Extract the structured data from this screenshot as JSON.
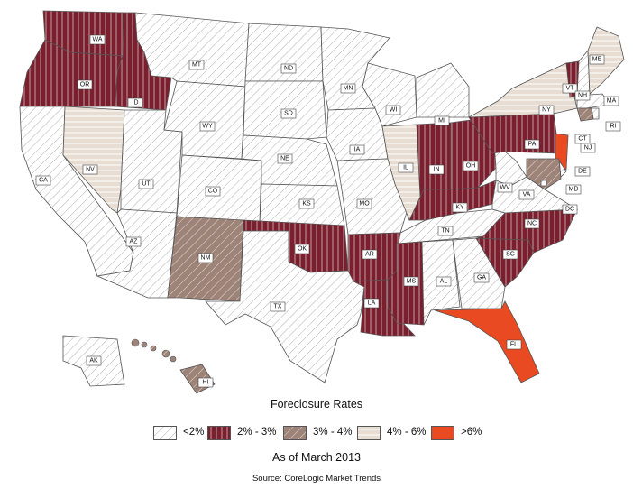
{
  "legend": {
    "title": "Foreclosure Rates",
    "items": [
      {
        "label": "<2%",
        "category": "lt2",
        "color": "#ffffff"
      },
      {
        "label": "2% - 3%",
        "category": "2to3",
        "color": "#7a1f2e"
      },
      {
        "label": "3% - 4%",
        "category": "3to4",
        "color": "#9e8478"
      },
      {
        "label": "4% - 6%",
        "category": "4to6",
        "color": "#e8ddd2"
      },
      {
        "label": ">6%",
        "category": "gt6",
        "color": "#ea4a22"
      }
    ]
  },
  "as_of": "As of March 2013",
  "source": "Source: CoreLogic Market Trends",
  "states": [
    {
      "abbr": "WA",
      "category": "2to3"
    },
    {
      "abbr": "OR",
      "category": "2to3"
    },
    {
      "abbr": "ID",
      "category": "2to3"
    },
    {
      "abbr": "CA",
      "category": "lt2"
    },
    {
      "abbr": "NV",
      "category": "4to6"
    },
    {
      "abbr": "UT",
      "category": "lt2"
    },
    {
      "abbr": "AZ",
      "category": "lt2"
    },
    {
      "abbr": "MT",
      "category": "lt2"
    },
    {
      "abbr": "WY",
      "category": "lt2"
    },
    {
      "abbr": "CO",
      "category": "lt2"
    },
    {
      "abbr": "NM",
      "category": "3to4"
    },
    {
      "abbr": "ND",
      "category": "lt2"
    },
    {
      "abbr": "SD",
      "category": "lt2"
    },
    {
      "abbr": "NE",
      "category": "lt2"
    },
    {
      "abbr": "KS",
      "category": "lt2"
    },
    {
      "abbr": "OK",
      "category": "2to3"
    },
    {
      "abbr": "TX",
      "category": "lt2"
    },
    {
      "abbr": "MN",
      "category": "lt2"
    },
    {
      "abbr": "IA",
      "category": "lt2"
    },
    {
      "abbr": "MO",
      "category": "lt2"
    },
    {
      "abbr": "AR",
      "category": "2to3"
    },
    {
      "abbr": "LA",
      "category": "2to3"
    },
    {
      "abbr": "WI",
      "category": "lt2"
    },
    {
      "abbr": "IL",
      "category": "4to6"
    },
    {
      "abbr": "MI",
      "category": "lt2"
    },
    {
      "abbr": "IN",
      "category": "2to3"
    },
    {
      "abbr": "OH",
      "category": "2to3"
    },
    {
      "abbr": "KY",
      "category": "2to3"
    },
    {
      "abbr": "TN",
      "category": "lt2"
    },
    {
      "abbr": "MS",
      "category": "2to3"
    },
    {
      "abbr": "AL",
      "category": "lt2"
    },
    {
      "abbr": "GA",
      "category": "lt2"
    },
    {
      "abbr": "FL",
      "category": "gt6"
    },
    {
      "abbr": "SC",
      "category": "2to3"
    },
    {
      "abbr": "NC",
      "category": "2to3"
    },
    {
      "abbr": "VA",
      "category": "lt2"
    },
    {
      "abbr": "WV",
      "category": "lt2"
    },
    {
      "abbr": "PA",
      "category": "2to3"
    },
    {
      "abbr": "NY",
      "category": "4to6"
    },
    {
      "abbr": "VT",
      "category": "2to3"
    },
    {
      "abbr": "NH",
      "category": "lt2"
    },
    {
      "abbr": "ME",
      "category": "4to6"
    },
    {
      "abbr": "MA",
      "category": "lt2"
    },
    {
      "abbr": "RI",
      "category": "lt2"
    },
    {
      "abbr": "CT",
      "category": "3to4"
    },
    {
      "abbr": "NJ",
      "category": "gt6"
    },
    {
      "abbr": "DE",
      "category": "lt2"
    },
    {
      "abbr": "MD",
      "category": "3to4"
    },
    {
      "abbr": "DC",
      "category": "lt2"
    },
    {
      "abbr": "AK",
      "category": "lt2"
    },
    {
      "abbr": "HI",
      "category": "3to4"
    }
  ]
}
